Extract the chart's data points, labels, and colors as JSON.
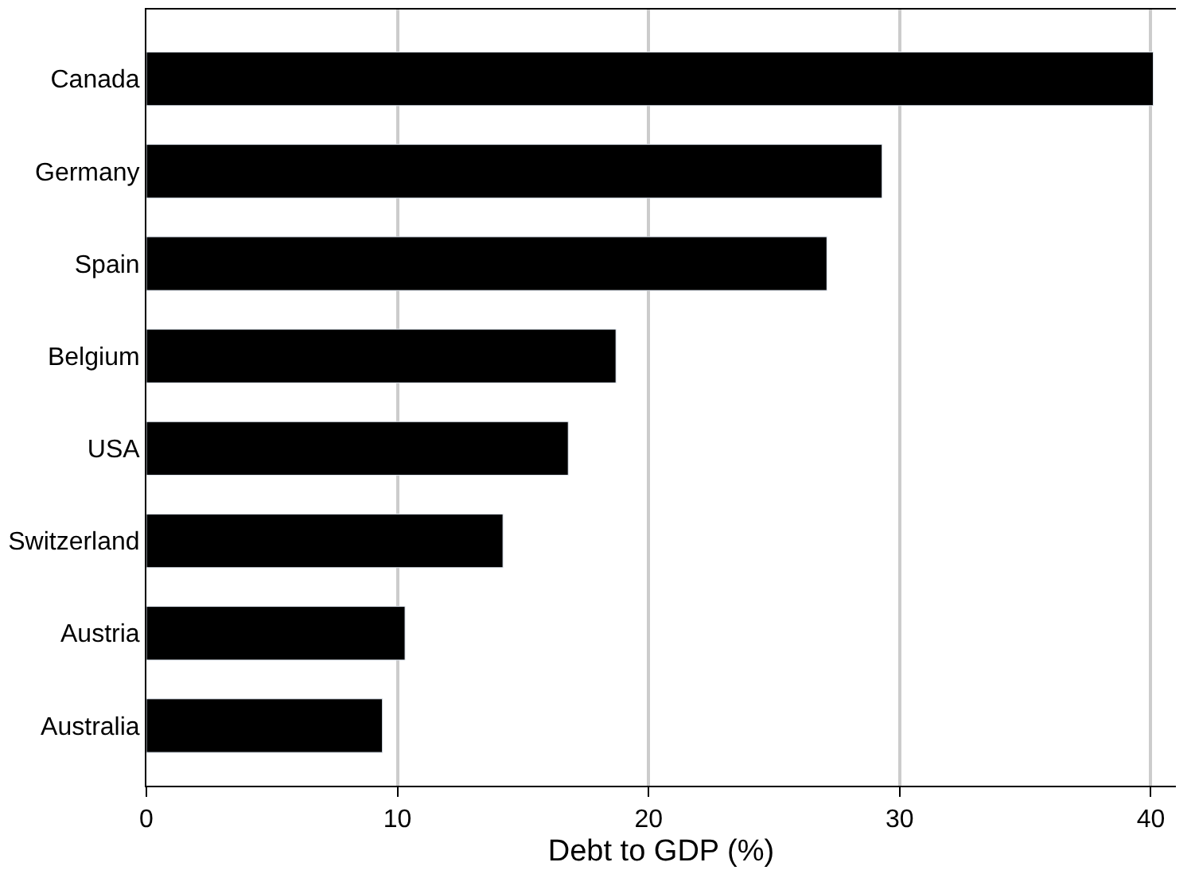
{
  "chart_data": {
    "type": "bar",
    "orientation": "horizontal",
    "xlabel": "Debt to GDP (%)",
    "categories": [
      "Canada",
      "Germany",
      "Spain",
      "Belgium",
      "USA",
      "Switzerland",
      "Austria",
      "Australia"
    ],
    "values": [
      40.1,
      29.3,
      27.1,
      18.7,
      16.8,
      14.2,
      10.3,
      9.4
    ],
    "color": "#000000",
    "xlim": [
      0,
      41
    ],
    "xticks": [
      0,
      10,
      20,
      30,
      40
    ],
    "grid": "x"
  }
}
